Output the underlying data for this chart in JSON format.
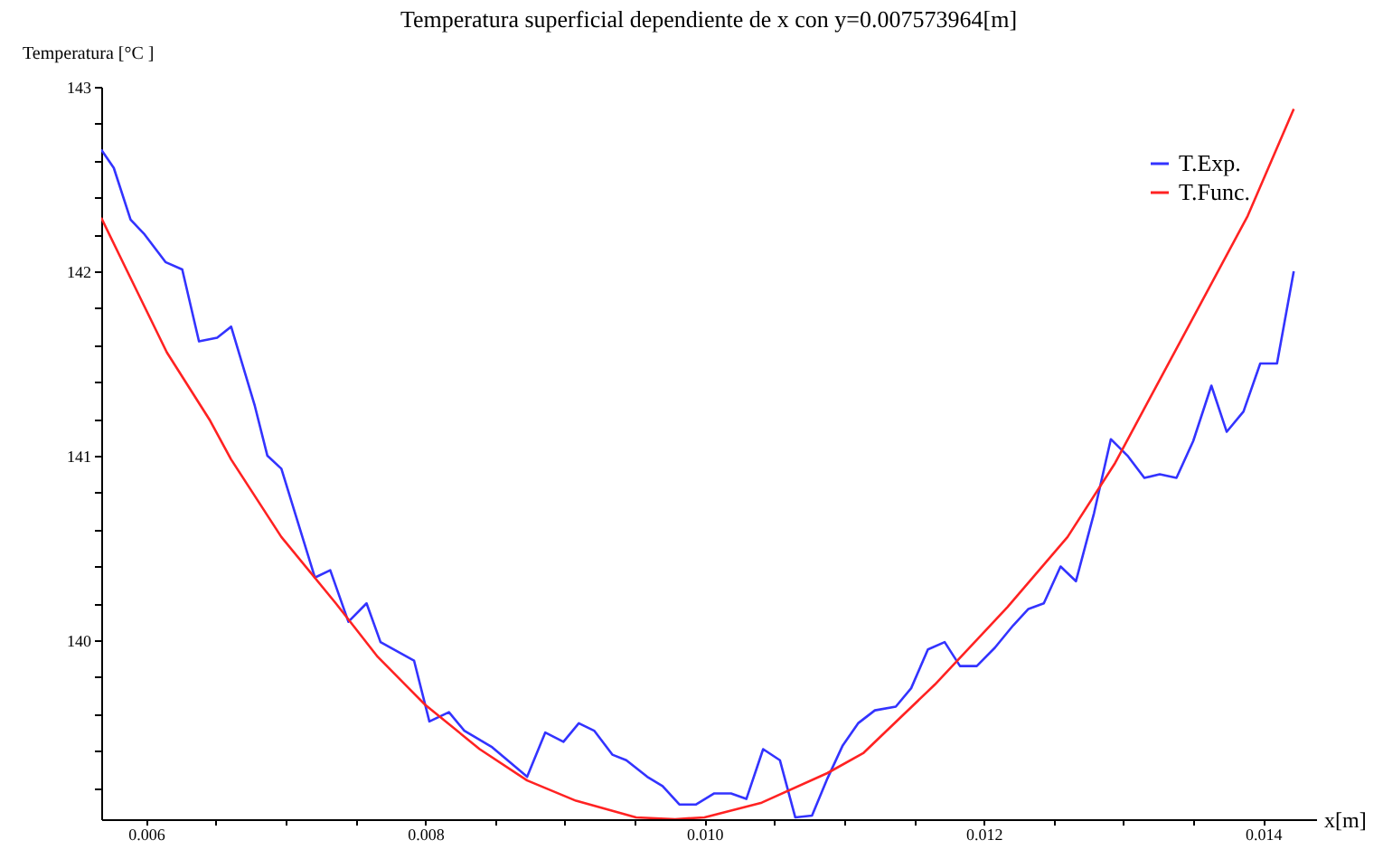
{
  "chart_data": {
    "type": "line",
    "title": "Temperatura  superficial  dependiente  de x con  y=0.007573964[m]",
    "xlabel": "x[m]",
    "ylabel": "Temperatura   [°C ]",
    "xlim": [
      0.00568,
      0.01438
    ],
    "ylim": [
      139.03,
      143
    ],
    "xticks": [
      {
        "value": 0.006,
        "label": "0.006"
      },
      {
        "value": 0.0065,
        "label": null
      },
      {
        "value": 0.007,
        "label": null
      },
      {
        "value": 0.0075,
        "label": null
      },
      {
        "value": 0.008,
        "label": "0.008"
      },
      {
        "value": 0.0085,
        "label": null
      },
      {
        "value": 0.009,
        "label": null
      },
      {
        "value": 0.0095,
        "label": null
      },
      {
        "value": 0.01,
        "label": "0.010"
      },
      {
        "value": 0.0105,
        "label": null
      },
      {
        "value": 0.011,
        "label": null
      },
      {
        "value": 0.0115,
        "label": null
      },
      {
        "value": 0.012,
        "label": "0.012"
      },
      {
        "value": 0.0125,
        "label": null
      },
      {
        "value": 0.013,
        "label": null
      },
      {
        "value": 0.0135,
        "label": null
      },
      {
        "value": 0.014,
        "label": "0.014"
      }
    ],
    "yticks": [
      {
        "value": 139.2,
        "label": null
      },
      {
        "value": 139.4,
        "label": null
      },
      {
        "value": 139.6,
        "label": null
      },
      {
        "value": 139.8,
        "label": null
      },
      140,
      {
        "value": 140.2,
        "label": null
      },
      {
        "value": 140.4,
        "label": null
      },
      {
        "value": 140.6,
        "label": null
      },
      {
        "value": 140.8,
        "label": null
      },
      141,
      {
        "value": 141.2,
        "label": null
      },
      {
        "value": 141.4,
        "label": null
      },
      {
        "value": 141.6,
        "label": null
      },
      {
        "value": 141.8,
        "label": null
      },
      142,
      {
        "value": 142.2,
        "label": null
      },
      {
        "value": 142.4,
        "label": null
      },
      {
        "value": 142.6,
        "label": null
      },
      {
        "value": 142.8,
        "label": null
      },
      143
    ],
    "grid": false,
    "legend": "top right",
    "marker": "none",
    "line_style": "solid",
    "series": [
      {
        "name": "T.Exp.",
        "color": "#3333ff",
        "x": [
          0.00568,
          0.00577,
          0.00589,
          0.00599,
          0.00614,
          0.00626,
          0.00638,
          0.00651,
          0.00661,
          0.00678,
          0.00687,
          0.00697,
          0.00721,
          0.00732,
          0.00745,
          0.00758,
          0.00768,
          0.00792,
          0.00803,
          0.00817,
          0.00828,
          0.00848,
          0.00873,
          0.00886,
          0.00899,
          0.0091,
          0.00921,
          0.00934,
          0.00944,
          0.00959,
          0.0097,
          0.00982,
          0.00994,
          0.01007,
          0.01019,
          0.0103,
          0.01042,
          0.01054,
          0.01065,
          0.01077,
          0.01088,
          0.01099,
          0.0111,
          0.01122,
          0.01137,
          0.01148,
          0.0116,
          0.01172,
          0.01183,
          0.01195,
          0.01208,
          0.01221,
          0.01232,
          0.01243,
          0.01255,
          0.01266,
          0.01279,
          0.01291,
          0.01303,
          0.01315,
          0.01326,
          0.01338,
          0.0135,
          0.01363,
          0.01374,
          0.01386,
          0.01398,
          0.0141,
          0.01422
        ],
        "values": [
          142.66,
          142.56,
          142.28,
          142.2,
          142.05,
          142.01,
          141.62,
          141.64,
          141.7,
          141.27,
          141.0,
          140.93,
          140.34,
          140.38,
          140.1,
          140.2,
          139.99,
          139.89,
          139.56,
          139.61,
          139.51,
          139.42,
          139.26,
          139.5,
          139.45,
          139.55,
          139.51,
          139.38,
          139.35,
          139.26,
          139.21,
          139.11,
          139.11,
          139.17,
          139.17,
          139.14,
          139.41,
          139.35,
          139.04,
          139.05,
          139.25,
          139.43,
          139.55,
          139.62,
          139.64,
          139.74,
          139.95,
          139.99,
          139.86,
          139.86,
          139.96,
          140.08,
          140.17,
          140.2,
          140.4,
          140.32,
          140.69,
          141.09,
          141.0,
          140.88,
          140.9,
          140.88,
          141.08,
          141.38,
          141.13,
          141.24,
          141.5,
          141.5,
          142.0
        ]
      },
      {
        "name": "T.Func.",
        "color": "#ff2222",
        "x": [
          0.00568,
          0.00586,
          0.00615,
          0.00646,
          0.00661,
          0.00697,
          0.00736,
          0.00766,
          0.008,
          0.00839,
          0.00873,
          0.00908,
          0.00951,
          0.00979,
          0.01,
          0.01041,
          0.01088,
          0.01114,
          0.01165,
          0.01217,
          0.0126,
          0.01294,
          0.0135,
          0.01389,
          0.01422
        ],
        "values": [
          142.29,
          142.01,
          141.56,
          141.19,
          140.98,
          140.56,
          140.2,
          139.91,
          139.65,
          139.41,
          139.24,
          139.13,
          139.04,
          139.03,
          139.04,
          139.12,
          139.28,
          139.39,
          139.76,
          140.18,
          140.56,
          140.96,
          141.75,
          142.3,
          142.88
        ]
      }
    ]
  }
}
